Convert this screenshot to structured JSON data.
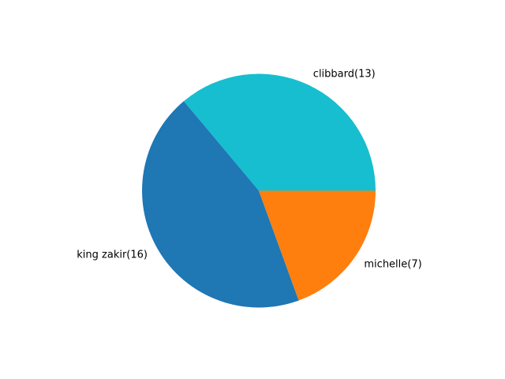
{
  "chart_data": {
    "type": "pie",
    "title": "",
    "start_angle_deg": 0,
    "direction": "counterclockwise",
    "slices": [
      {
        "name": "clibbard",
        "value": 13,
        "label": "clibbard(13)",
        "color": "#17becf"
      },
      {
        "name": "king zakir",
        "value": 16,
        "label": "king zakir(16)",
        "color": "#1f77b4"
      },
      {
        "name": "michelle",
        "value": 7,
        "label": "michelle(7)",
        "color": "#ff7f0e"
      }
    ]
  }
}
